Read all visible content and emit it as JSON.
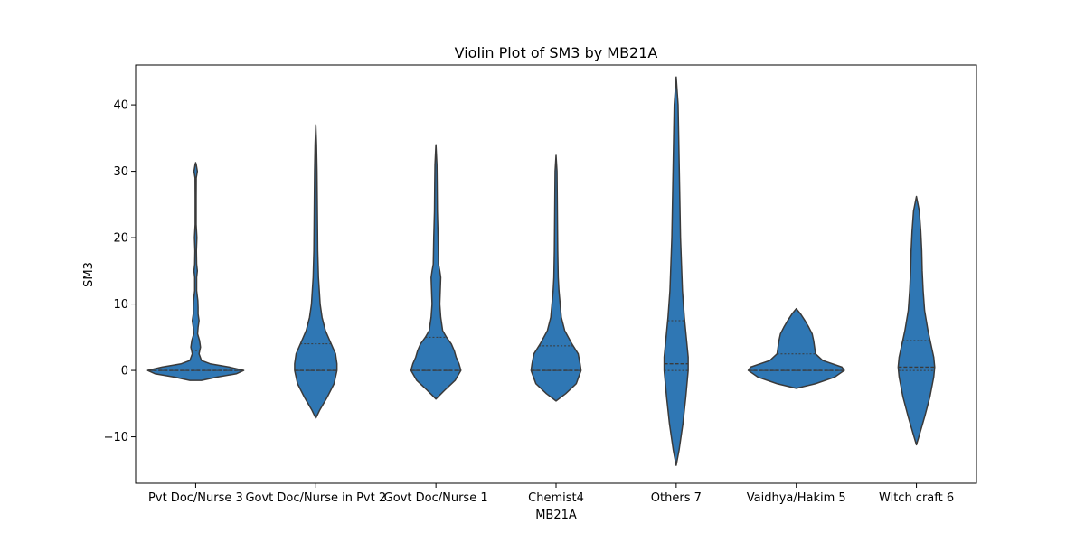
{
  "chart_data": {
    "type": "violin",
    "title": "Violin Plot of SM3 by MB21A",
    "xlabel": "MB21A",
    "ylabel": "SM3",
    "ylim": [
      -17,
      46
    ],
    "yticks": [
      -10,
      0,
      10,
      20,
      30,
      40
    ],
    "grid": false,
    "fill_color": "#2f77b4",
    "edge_color": "#3a3a3a",
    "categories": [
      "Pvt Doc/Nurse 3",
      "Govt Doc/Nurse in Pvt 2",
      "Govt Doc/Nurse 1",
      "Chemist4",
      "Others 7",
      "Vaidhya/Hakim 5",
      "Witch craft 6"
    ],
    "violins": [
      {
        "name": "Pvt Doc/Nurse 3",
        "quartiles": [
          0,
          0,
          3
        ],
        "profile": [
          [
            -1.5,
            0.12
          ],
          [
            -1,
            0.45
          ],
          [
            -0.5,
            0.85
          ],
          [
            0,
            1.0
          ],
          [
            0.5,
            0.7
          ],
          [
            1,
            0.3
          ],
          [
            1.5,
            0.12
          ],
          [
            2.5,
            0.07
          ],
          [
            3.5,
            0.1
          ],
          [
            4.5,
            0.08
          ],
          [
            5.5,
            0.04
          ],
          [
            6.5,
            0.05
          ],
          [
            7.5,
            0.07
          ],
          [
            8.5,
            0.05
          ],
          [
            9.5,
            0.05
          ],
          [
            10.5,
            0.045
          ],
          [
            12,
            0.02
          ],
          [
            14,
            0.02
          ],
          [
            15,
            0.035
          ],
          [
            16,
            0.02
          ],
          [
            18,
            0.015
          ],
          [
            20,
            0.025
          ],
          [
            22,
            0.01
          ],
          [
            26,
            0.01
          ],
          [
            29,
            0.012
          ],
          [
            30,
            0.035
          ],
          [
            31,
            0.012
          ],
          [
            31.3,
            0.0
          ]
        ]
      },
      {
        "name": "Govt Doc/Nurse in Pvt 2",
        "quartiles": [
          0,
          0,
          4
        ],
        "profile": [
          [
            -7.2,
            0.0
          ],
          [
            -6,
            0.08
          ],
          [
            -4,
            0.24
          ],
          [
            -2,
            0.38
          ],
          [
            0,
            0.44
          ],
          [
            1,
            0.44
          ],
          [
            2.5,
            0.41
          ],
          [
            4,
            0.32
          ],
          [
            6,
            0.2
          ],
          [
            8,
            0.13
          ],
          [
            10,
            0.09
          ],
          [
            14,
            0.055
          ],
          [
            18,
            0.04
          ],
          [
            22,
            0.035
          ],
          [
            26,
            0.03
          ],
          [
            30,
            0.025
          ],
          [
            34,
            0.015
          ],
          [
            37,
            0.0
          ]
        ]
      },
      {
        "name": "Govt Doc/Nurse 1",
        "quartiles": [
          0,
          0,
          5
        ],
        "profile": [
          [
            -4.3,
            0.0
          ],
          [
            -3,
            0.18
          ],
          [
            -1.5,
            0.4
          ],
          [
            0,
            0.52
          ],
          [
            1,
            0.48
          ],
          [
            2,
            0.42
          ],
          [
            3,
            0.38
          ],
          [
            4,
            0.32
          ],
          [
            5,
            0.22
          ],
          [
            6,
            0.14
          ],
          [
            8,
            0.1
          ],
          [
            10,
            0.08
          ],
          [
            12,
            0.09
          ],
          [
            14,
            0.1
          ],
          [
            15,
            0.08
          ],
          [
            16,
            0.055
          ],
          [
            18,
            0.05
          ],
          [
            20,
            0.045
          ],
          [
            24,
            0.03
          ],
          [
            28,
            0.025
          ],
          [
            31,
            0.02
          ],
          [
            34,
            0.0
          ]
        ]
      },
      {
        "name": "Chemist4",
        "quartiles": [
          0,
          0,
          3.7
        ],
        "profile": [
          [
            -4.6,
            0.0
          ],
          [
            -3.5,
            0.2
          ],
          [
            -2,
            0.42
          ],
          [
            0,
            0.52
          ],
          [
            1,
            0.5
          ],
          [
            2.5,
            0.46
          ],
          [
            4,
            0.33
          ],
          [
            6,
            0.18
          ],
          [
            8,
            0.11
          ],
          [
            10,
            0.085
          ],
          [
            12,
            0.06
          ],
          [
            14,
            0.045
          ],
          [
            18,
            0.035
          ],
          [
            22,
            0.03
          ],
          [
            26,
            0.025
          ],
          [
            30,
            0.02
          ],
          [
            32.4,
            0.0
          ]
        ]
      },
      {
        "name": "Others 7",
        "quartiles": [
          0,
          1,
          7.5
        ],
        "profile": [
          [
            -14.3,
            0.0
          ],
          [
            -12,
            0.06
          ],
          [
            -8,
            0.14
          ],
          [
            -4,
            0.2
          ],
          [
            0,
            0.25
          ],
          [
            2,
            0.25
          ],
          [
            5,
            0.21
          ],
          [
            8,
            0.17
          ],
          [
            12,
            0.13
          ],
          [
            16,
            0.11
          ],
          [
            20,
            0.09
          ],
          [
            24,
            0.08
          ],
          [
            28,
            0.07
          ],
          [
            32,
            0.06
          ],
          [
            36,
            0.05
          ],
          [
            40,
            0.04
          ],
          [
            44.2,
            0.0
          ]
        ]
      },
      {
        "name": "Vaidhya/Hakim 5",
        "quartiles": [
          0,
          0,
          2.5
        ],
        "profile": [
          [
            -2.7,
            0.0
          ],
          [
            -2,
            0.4
          ],
          [
            -1,
            0.8
          ],
          [
            0,
            1.0
          ],
          [
            0.5,
            0.95
          ],
          [
            1.5,
            0.55
          ],
          [
            2.5,
            0.4
          ],
          [
            3.5,
            0.38
          ],
          [
            4.5,
            0.36
          ],
          [
            5.5,
            0.33
          ],
          [
            6.5,
            0.26
          ],
          [
            7.5,
            0.18
          ],
          [
            8.5,
            0.09
          ],
          [
            9.3,
            0.0
          ]
        ]
      },
      {
        "name": "Witch craft 6",
        "quartiles": [
          0,
          0.5,
          4.5
        ],
        "profile": [
          [
            -11.2,
            0.0
          ],
          [
            -10,
            0.05
          ],
          [
            -7,
            0.17
          ],
          [
            -4,
            0.28
          ],
          [
            -1,
            0.36
          ],
          [
            0.5,
            0.38
          ],
          [
            2,
            0.36
          ],
          [
            4,
            0.3
          ],
          [
            6,
            0.24
          ],
          [
            9,
            0.17
          ],
          [
            12,
            0.14
          ],
          [
            15,
            0.12
          ],
          [
            18,
            0.11
          ],
          [
            21,
            0.09
          ],
          [
            24,
            0.06
          ],
          [
            26.2,
            0.0
          ]
        ]
      }
    ]
  }
}
